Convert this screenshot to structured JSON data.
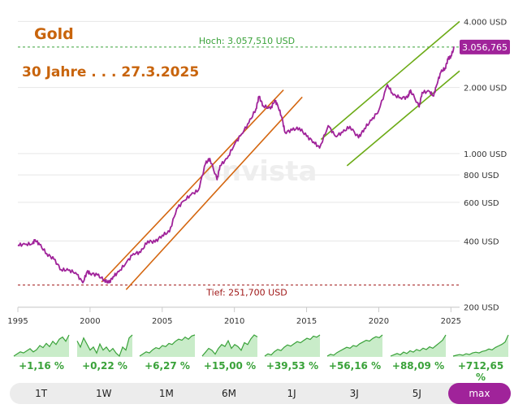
{
  "chart_data": {
    "type": "line",
    "title": "Gold",
    "subtitle": "30 Jahre . . . 27.3.2025",
    "watermark": "onvista",
    "scale": "log",
    "ylim": [
      180,
      4600
    ],
    "xlim": [
      1995,
      2025.6
    ],
    "y_ticks": [
      {
        "value": 200,
        "label": "200 USD"
      },
      {
        "value": 400,
        "label": "400 USD"
      },
      {
        "value": 600,
        "label": "600 USD"
      },
      {
        "value": 800,
        "label": "800 USD"
      },
      {
        "value": 1000,
        "label": "1.000 USD"
      },
      {
        "value": 2000,
        "label": "2.000 USD"
      },
      {
        "value": 4000,
        "label": "4.000 USD"
      }
    ],
    "x_ticks": [
      {
        "value": 1995,
        "label": "1995"
      },
      {
        "value": 2000,
        "label": "2000"
      },
      {
        "value": 2005,
        "label": "2005"
      },
      {
        "value": 2010,
        "label": "2010"
      },
      {
        "value": 2015,
        "label": "2015"
      },
      {
        "value": 2020,
        "label": "2020"
      },
      {
        "value": 2025,
        "label": "2025"
      }
    ],
    "high": {
      "value": 3057.51,
      "label": "Hoch: 3.057,510 USD"
    },
    "low": {
      "value": 251.7,
      "label": "Tief: 251,700 USD"
    },
    "last": {
      "value": 3056.765,
      "label": "3.056,765"
    },
    "series": [
      {
        "name": "Gold (USD)",
        "color": "#a0239a",
        "points": [
          [
            1995.0,
            383
          ],
          [
            1995.5,
            386
          ],
          [
            1996.0,
            388
          ],
          [
            1996.2,
            405
          ],
          [
            1996.5,
            385
          ],
          [
            1997.0,
            350
          ],
          [
            1997.5,
            330
          ],
          [
            1998.0,
            296
          ],
          [
            1998.5,
            294
          ],
          [
            1999.0,
            287
          ],
          [
            1999.5,
            258
          ],
          [
            1999.8,
            290
          ],
          [
            2000.0,
            285
          ],
          [
            2000.5,
            280
          ],
          [
            2001.0,
            265
          ],
          [
            2001.3,
            258
          ],
          [
            2001.6,
            275
          ],
          [
            2002.0,
            290
          ],
          [
            2002.5,
            318
          ],
          [
            2003.0,
            350
          ],
          [
            2003.5,
            355
          ],
          [
            2004.0,
            400
          ],
          [
            2004.5,
            395
          ],
          [
            2005.0,
            425
          ],
          [
            2005.5,
            440
          ],
          [
            2006.0,
            560
          ],
          [
            2006.5,
            610
          ],
          [
            2007.0,
            650
          ],
          [
            2007.5,
            680
          ],
          [
            2008.0,
            900
          ],
          [
            2008.3,
            950
          ],
          [
            2008.8,
            760
          ],
          [
            2009.0,
            880
          ],
          [
            2009.5,
            950
          ],
          [
            2010.0,
            1100
          ],
          [
            2010.5,
            1230
          ],
          [
            2011.0,
            1380
          ],
          [
            2011.5,
            1600
          ],
          [
            2011.7,
            1820
          ],
          [
            2012.0,
            1650
          ],
          [
            2012.5,
            1600
          ],
          [
            2012.8,
            1750
          ],
          [
            2013.0,
            1660
          ],
          [
            2013.3,
            1450
          ],
          [
            2013.5,
            1250
          ],
          [
            2014.0,
            1280
          ],
          [
            2014.5,
            1310
          ],
          [
            2015.0,
            1200
          ],
          [
            2015.5,
            1130
          ],
          [
            2015.9,
            1060
          ],
          [
            2016.5,
            1340
          ],
          [
            2017.0,
            1200
          ],
          [
            2017.5,
            1250
          ],
          [
            2018.0,
            1330
          ],
          [
            2018.6,
            1180
          ],
          [
            2019.0,
            1300
          ],
          [
            2019.5,
            1420
          ],
          [
            2020.0,
            1570
          ],
          [
            2020.6,
            2060
          ],
          [
            2021.0,
            1850
          ],
          [
            2021.5,
            1800
          ],
          [
            2022.0,
            1800
          ],
          [
            2022.2,
            1950
          ],
          [
            2022.8,
            1630
          ],
          [
            2023.0,
            1900
          ],
          [
            2023.5,
            1920
          ],
          [
            2023.8,
            1830
          ],
          [
            2024.0,
            2050
          ],
          [
            2024.3,
            2350
          ],
          [
            2024.6,
            2450
          ],
          [
            2024.8,
            2700
          ],
          [
            2025.0,
            2780
          ],
          [
            2025.24,
            3056
          ]
        ]
      }
    ],
    "channels": [
      {
        "name": "orange channel upper",
        "color": "#d4660f",
        "points": [
          [
            2000.8,
            260
          ],
          [
            2013.4,
            1950
          ]
        ]
      },
      {
        "name": "orange channel lower",
        "color": "#d4660f",
        "points": [
          [
            2002.5,
            240
          ],
          [
            2014.7,
            1810
          ]
        ]
      },
      {
        "name": "green channel upper",
        "color": "#6cab16",
        "points": [
          [
            2016.0,
            1160
          ],
          [
            2025.6,
            4000
          ]
        ]
      },
      {
        "name": "green channel lower",
        "color": "#6cab16",
        "points": [
          [
            2017.8,
            880
          ],
          [
            2025.6,
            2380
          ]
        ]
      }
    ]
  },
  "mini_charts": [
    {
      "pct": "+1,16 %",
      "points": [
        8,
        10,
        12,
        11,
        13,
        15,
        12,
        14,
        18,
        16,
        20,
        17,
        22,
        19,
        24,
        26,
        22,
        28
      ]
    },
    {
      "pct": "+0,22 %",
      "points": [
        22,
        18,
        24,
        20,
        16,
        18,
        14,
        20,
        16,
        18,
        15,
        17,
        14,
        12,
        18,
        16,
        24,
        26
      ]
    },
    {
      "pct": "+6,27 %",
      "points": [
        6,
        8,
        10,
        9,
        12,
        14,
        13,
        16,
        15,
        18,
        17,
        20,
        22,
        21,
        24,
        22,
        25,
        26
      ]
    },
    {
      "pct": "+15,00 %",
      "points": [
        8,
        10,
        12,
        11,
        9,
        12,
        14,
        13,
        16,
        12,
        14,
        13,
        11,
        15,
        14,
        17,
        19,
        18
      ]
    },
    {
      "pct": "+39,53 %",
      "points": [
        4,
        6,
        5,
        8,
        10,
        9,
        12,
        14,
        13,
        15,
        17,
        16,
        18,
        20,
        19,
        22,
        21,
        23
      ]
    },
    {
      "pct": "+56,16 %",
      "points": [
        4,
        6,
        5,
        8,
        10,
        12,
        14,
        13,
        16,
        15,
        18,
        20,
        22,
        21,
        24,
        26,
        25,
        28
      ]
    },
    {
      "pct": "+88,09 %",
      "points": [
        6,
        7,
        8,
        7,
        9,
        8,
        10,
        9,
        11,
        10,
        12,
        11,
        13,
        12,
        14,
        16,
        18,
        22
      ]
    },
    {
      "pct": "+712,65 %",
      "points": [
        3,
        4,
        5,
        4,
        6,
        5,
        7,
        8,
        7,
        9,
        10,
        12,
        11,
        14,
        16,
        18,
        21,
        30
      ]
    }
  ],
  "tabs": [
    {
      "label": "1T",
      "active": false
    },
    {
      "label": "1W",
      "active": false
    },
    {
      "label": "1M",
      "active": false
    },
    {
      "label": "6M",
      "active": false
    },
    {
      "label": "1J",
      "active": false
    },
    {
      "label": "3J",
      "active": false
    },
    {
      "label": "5J",
      "active": false
    },
    {
      "label": "max",
      "active": true
    }
  ],
  "colors": {
    "line": "#a0239a",
    "high_line": "#3aa23a",
    "low_line": "#a01818",
    "mini_fill": "#c9ecc9",
    "mini_line": "#3aa23a",
    "pct_text": "#3aa23a",
    "tab_active": "#a0239a"
  }
}
